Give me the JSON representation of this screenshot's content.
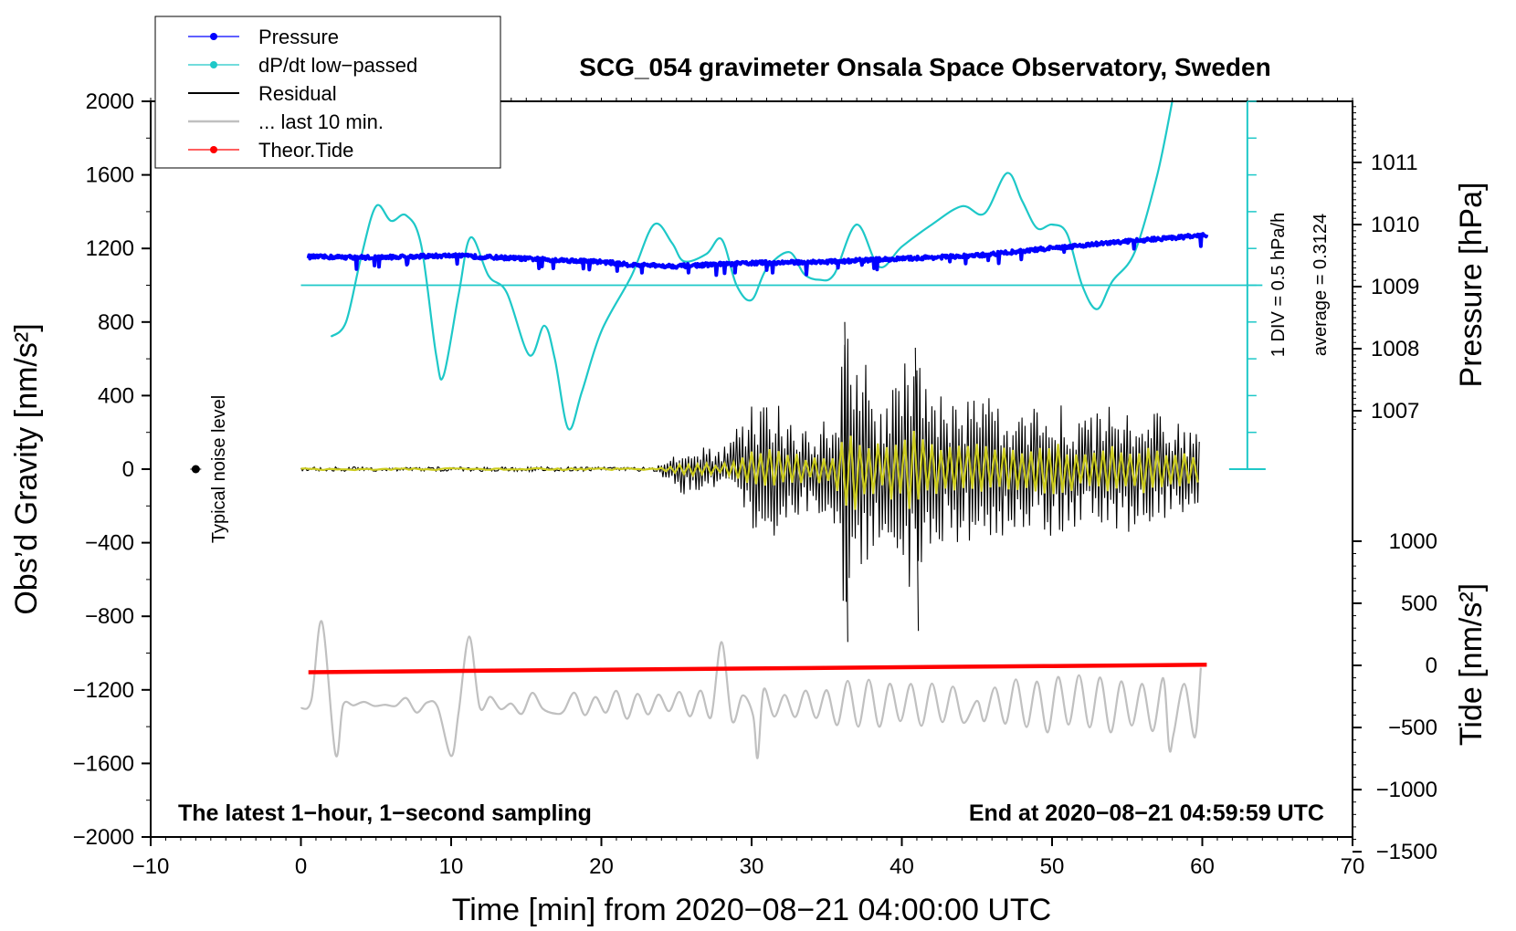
{
  "chart_data": {
    "type": "line",
    "title": "SCG_054 gravimeter Onsala Space Observatory, Sweden",
    "xlabel": "Time [min] from 2020−08−21 04:00:00 UTC",
    "ylabel_left": "Obs’d Gravity [nm/s²]",
    "ylabel_right_top": "Pressure [hPa]",
    "ylabel_right_bottom": "Tide [nm/s²]",
    "xlim": [
      -10,
      70
    ],
    "ylim_left": [
      -2000,
      2000
    ],
    "x_ticks": [
      "−10",
      "0",
      "10",
      "20",
      "30",
      "40",
      "50",
      "60",
      "70"
    ],
    "y_ticks_left": [
      "−2000",
      "−1600",
      "−1200",
      "−800",
      "−400",
      "0",
      "400",
      "800",
      "1200",
      "1600",
      "2000"
    ],
    "pressure_ticks": [
      "1007",
      "1008",
      "1009",
      "1010",
      "1011"
    ],
    "tide_ticks": [
      "−1500",
      "−1000",
      "−500",
      "0",
      "500",
      "1000"
    ],
    "annotations": {
      "bottom_left": "The latest 1−hour, 1−second sampling",
      "bottom_right": "End at 2020−08−21 04:59:59 UTC",
      "noise_label": "Typical noise level",
      "div_label": "1 DIV = 0.5 hPa/h",
      "average_label": "average = 0.3124"
    },
    "legend": [
      {
        "label": "Pressure",
        "color": "#0000ff",
        "marker": true
      },
      {
        "label": "dP/dt low−passed",
        "color": "#1ec8c8",
        "marker": true
      },
      {
        "label": "Residual",
        "color": "#000000",
        "marker": false
      },
      {
        "label": "... last 10 min.",
        "color": "#c0c0c0",
        "marker": false
      },
      {
        "label": "Theor.Tide",
        "color": "#ff0000",
        "marker": true
      }
    ],
    "series": [
      {
        "name": "Pressure",
        "axis": "pressure_hPa",
        "color": "#0000ff",
        "x": [
          0.5,
          5,
          10,
          15,
          20,
          22,
          25,
          30,
          35,
          40,
          45,
          50,
          55,
          60.3
        ],
        "y": [
          1009.48,
          1009.47,
          1009.5,
          1009.45,
          1009.4,
          1009.35,
          1009.33,
          1009.38,
          1009.4,
          1009.45,
          1009.5,
          1009.62,
          1009.73,
          1009.83
        ]
      },
      {
        "name": "dP/dt low−passed",
        "axis": "left_gravity",
        "color": "#1ec8c8",
        "x": [
          2,
          3,
          4,
          5,
          6,
          7,
          8,
          9,
          9.5,
          10.5,
          11.3,
          12.5,
          13.7,
          15.2,
          16.2,
          16.9,
          17.8,
          18.7,
          20,
          22,
          23.5,
          24.7,
          25.5,
          27,
          28,
          29,
          30,
          31,
          32.5,
          33.5,
          34.5,
          35.5,
          37,
          38.5,
          40,
          42,
          44,
          45.5,
          47,
          48,
          49,
          50,
          51,
          52,
          53,
          54,
          55.5,
          57,
          58
        ],
        "y": [
          720,
          800,
          1150,
          1430,
          1350,
          1380,
          1220,
          620,
          510,
          950,
          1260,
          1050,
          960,
          620,
          780,
          600,
          220,
          420,
          750,
          1050,
          1330,
          1230,
          1130,
          1170,
          1250,
          1000,
          920,
          1090,
          1180,
          1060,
          1030,
          1060,
          1330,
          1100,
          1210,
          1330,
          1430,
          1390,
          1610,
          1460,
          1310,
          1330,
          1280,
          1000,
          870,
          1020,
          1180,
          1600,
          2000
        ]
      },
      {
        "name": "dP/dt zero line",
        "axis": "left_gravity",
        "color": "#1ec8c8",
        "x": [
          0,
          64
        ],
        "y": [
          1000,
          1000
        ]
      },
      {
        "name": "Residual",
        "axis": "left_gravity",
        "color": "#000000",
        "x": [
          0,
          10,
          20,
          23.5,
          25.5,
          28,
          30.5,
          32,
          34,
          35.5,
          36.2,
          37,
          38.5,
          40.5,
          41,
          42,
          44,
          46,
          48,
          50,
          52,
          54,
          56,
          58,
          59.9
        ],
        "y": [
          0,
          0,
          0,
          0,
          150,
          100,
          400,
          350,
          220,
          300,
          800,
          700,
          400,
          650,
          600,
          400,
          420,
          390,
          320,
          400,
          300,
          350,
          350,
          260,
          200
        ],
        "note": "y = approximate envelope amplitude of oscillating residual; extremes about +800 and −940 near 36.2 min"
      },
      {
        "name": "... last 10 min.",
        "axis": "left_gravity",
        "color": "#c0c0c0",
        "x": [
          0,
          1.4,
          2.3,
          10,
          11.2,
          17,
          28,
          30.4,
          45,
          57.8,
          59.9
        ],
        "y": [
          -1300,
          -830,
          -1550,
          -1560,
          -910,
          -1330,
          -940,
          -1570,
          -1260,
          -1520,
          -1080
        ],
        "note": "selected peaks and troughs of the oscillating trace"
      },
      {
        "name": "Theor.Tide",
        "axis": "tide_nm_s2",
        "color": "#ff0000",
        "x": [
          0.5,
          10,
          20,
          30,
          40,
          50,
          60.3
        ],
        "y": [
          -55,
          -45,
          -35,
          -25,
          -15,
          -5,
          5
        ]
      },
      {
        "name": "Typical noise level",
        "axis": "left_gravity",
        "color": "#000000",
        "x": [
          -7
        ],
        "y": [
          0
        ]
      }
    ]
  }
}
